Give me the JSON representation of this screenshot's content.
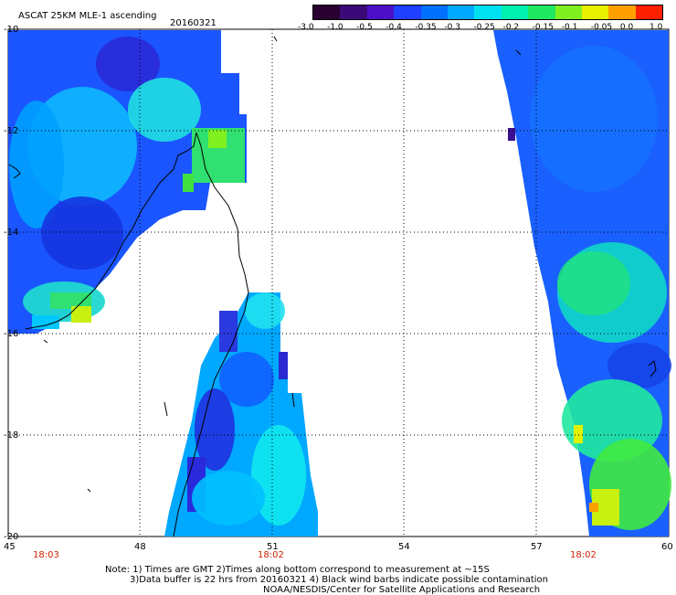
{
  "header": {
    "title": "ASCAT 25KM MLE-1 ascending",
    "date": "20160321"
  },
  "colorbar": {
    "labels": [
      "-3.0",
      "-1.0",
      "-0.5",
      "-0.4",
      "-0.35",
      "-0.3",
      "-0.25",
      "-0.2",
      "-0.15",
      "-0.1",
      "-0.05",
      "0.0",
      "1.0"
    ],
    "colors": [
      "#2a0030",
      "#3b0a78",
      "#4b0fc8",
      "#2040ff",
      "#0070ff",
      "#00a8ff",
      "#00e0f0",
      "#00f0b0",
      "#20e860",
      "#80f020",
      "#e8f000",
      "#ffa000",
      "#ff2000"
    ]
  },
  "axes": {
    "lat_labels": [
      "-10",
      "-12",
      "-14",
      "-16",
      "-18",
      "-20"
    ],
    "lon_labels": [
      "45",
      "48",
      "51",
      "54",
      "57",
      "60"
    ]
  },
  "times": [
    "18:03",
    "18:02",
    "18:02"
  ],
  "notes": {
    "line1": "Note: 1) Times are GMT 2)Times along bottom correspond to measurement at ~15S",
    "line2": "3)Data buffer is 22 hrs from 20160321 4) Black wind barbs indicate possible contamination",
    "line3": "NOAA/NESDIS/Center for Satellite Applications and Research"
  }
}
